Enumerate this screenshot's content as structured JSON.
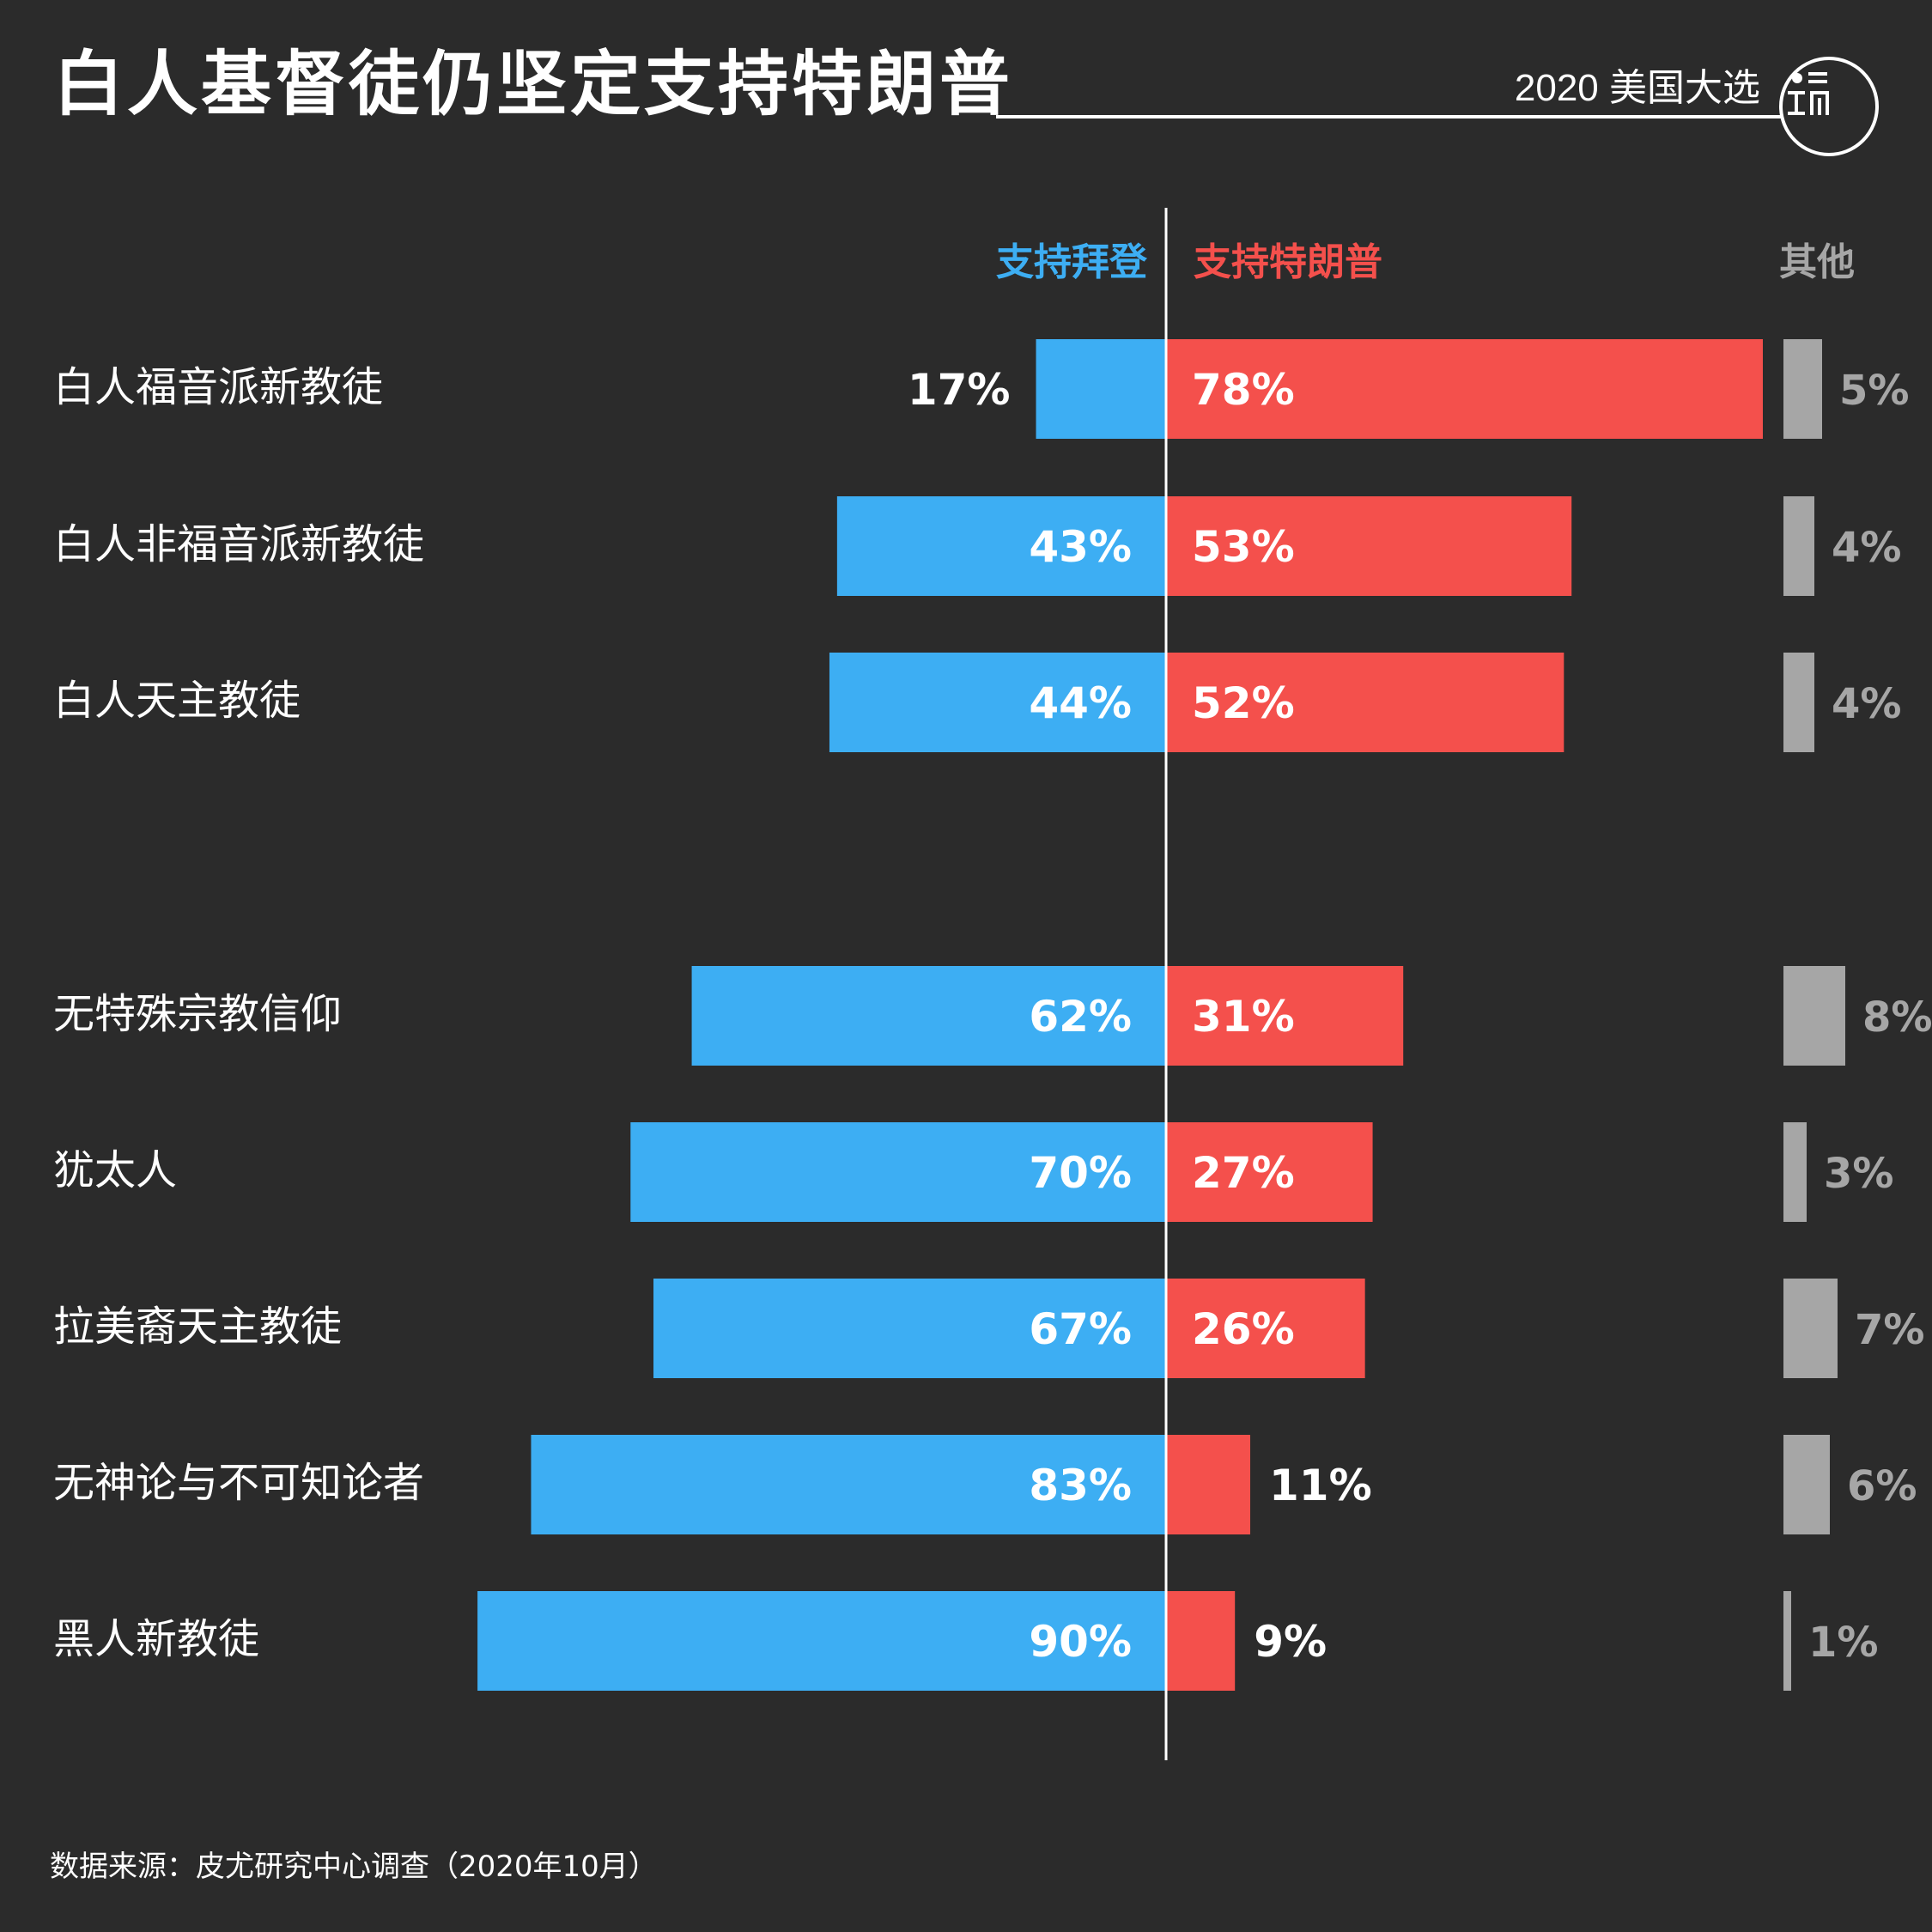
{
  "header": {
    "title": "白人基督徒仍坚定支持特朗普",
    "badge": "2020 美国大选"
  },
  "colors": {
    "biden": "#3daef3",
    "trump": "#f4504c",
    "other": "#a6a6a6",
    "background": "#2b2b2b"
  },
  "chart_data": {
    "type": "bar",
    "orientation": "horizontal-diverging",
    "categories": [
      "白人福音派新教徒",
      "白人非福音派新教徒",
      "白人天主教徒",
      "无特殊宗教信仰",
      "犹太人",
      "拉美裔天主教徒",
      "无神论与不可知论者",
      "黑人新教徒"
    ],
    "series": [
      {
        "name": "支持拜登",
        "color": "#3daef3",
        "values": [
          17,
          43,
          44,
          62,
          70,
          67,
          83,
          90
        ]
      },
      {
        "name": "支持特朗普",
        "color": "#f4504c",
        "values": [
          78,
          53,
          52,
          31,
          27,
          26,
          11,
          9
        ]
      },
      {
        "name": "其他",
        "color": "#a6a6a6",
        "values": [
          5,
          4,
          4,
          8,
          3,
          7,
          6,
          1
        ]
      }
    ],
    "value_suffix": "%",
    "groups": [
      [
        0,
        1,
        2
      ],
      [
        3,
        4,
        5,
        6,
        7
      ]
    ],
    "grid": false,
    "legend": "top"
  },
  "footer": {
    "source": "数据来源：皮尤研究中心调查（2020年10月）"
  }
}
